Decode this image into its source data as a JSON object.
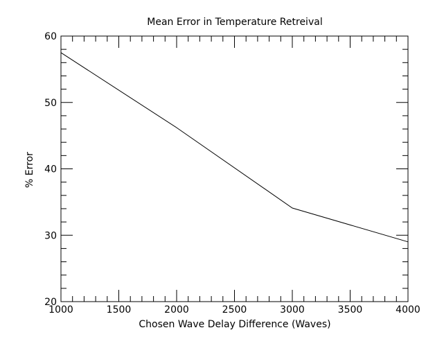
{
  "chart_data": {
    "type": "line",
    "title": "Mean Error in Temperature Retreival",
    "xlabel": "Chosen Wave Delay Difference (Waves)",
    "ylabel": "% Error",
    "xlim": [
      1000,
      4000
    ],
    "ylim": [
      20,
      60
    ],
    "x_major_ticks": [
      1000,
      1500,
      2000,
      2500,
      3000,
      3500,
      4000
    ],
    "x_tick_labels": [
      "1000",
      "1500",
      "2000",
      "2500",
      "3000",
      "3500",
      "4000"
    ],
    "x_minor_step": 100,
    "y_major_ticks": [
      20,
      30,
      40,
      50,
      60
    ],
    "y_tick_labels": [
      "20",
      "30",
      "40",
      "50",
      "60"
    ],
    "y_minor_step": 2,
    "grid": false,
    "legend": "none",
    "series": [
      {
        "color": "#000000",
        "x": [
          1000,
          2000,
          3000,
          4000
        ],
        "y": [
          57.5,
          46.2,
          34.1,
          29.0
        ]
      }
    ]
  }
}
